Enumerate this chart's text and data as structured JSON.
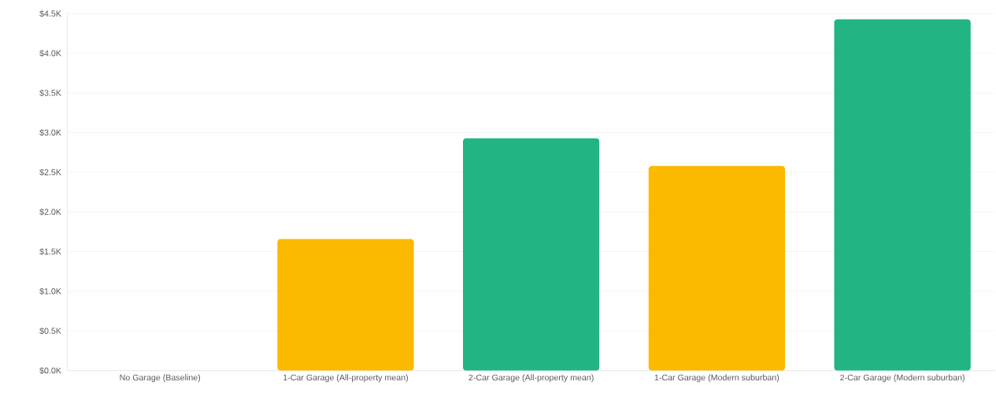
{
  "chart_data": {
    "type": "bar",
    "categories": [
      "No Garage (Baseline)",
      "1-Car Garage (All-property mean)",
      "2-Car Garage (All-property mean)",
      "1-Car Garage (Modern suburban)",
      "2-Car Garage (Modern suburban)"
    ],
    "values": [
      0,
      1660,
      2930,
      2580,
      4430
    ],
    "colors": [
      "#22b583",
      "#fbba00",
      "#22b583",
      "#fbba00",
      "#22b583"
    ],
    "ylim": [
      0,
      4500
    ],
    "yticks": [
      {
        "value": 0,
        "label": "$0.0K"
      },
      {
        "value": 500,
        "label": "$0.5K"
      },
      {
        "value": 1000,
        "label": "$1.0K"
      },
      {
        "value": 1500,
        "label": "$1.5K"
      },
      {
        "value": 2000,
        "label": "$2.0K"
      },
      {
        "value": 2500,
        "label": "$2.5K"
      },
      {
        "value": 3000,
        "label": "$3.0K"
      },
      {
        "value": 3500,
        "label": "$3.5K"
      },
      {
        "value": 4000,
        "label": "$4.0K"
      },
      {
        "value": 4500,
        "label": "$4.5K"
      }
    ],
    "grid": "y"
  }
}
